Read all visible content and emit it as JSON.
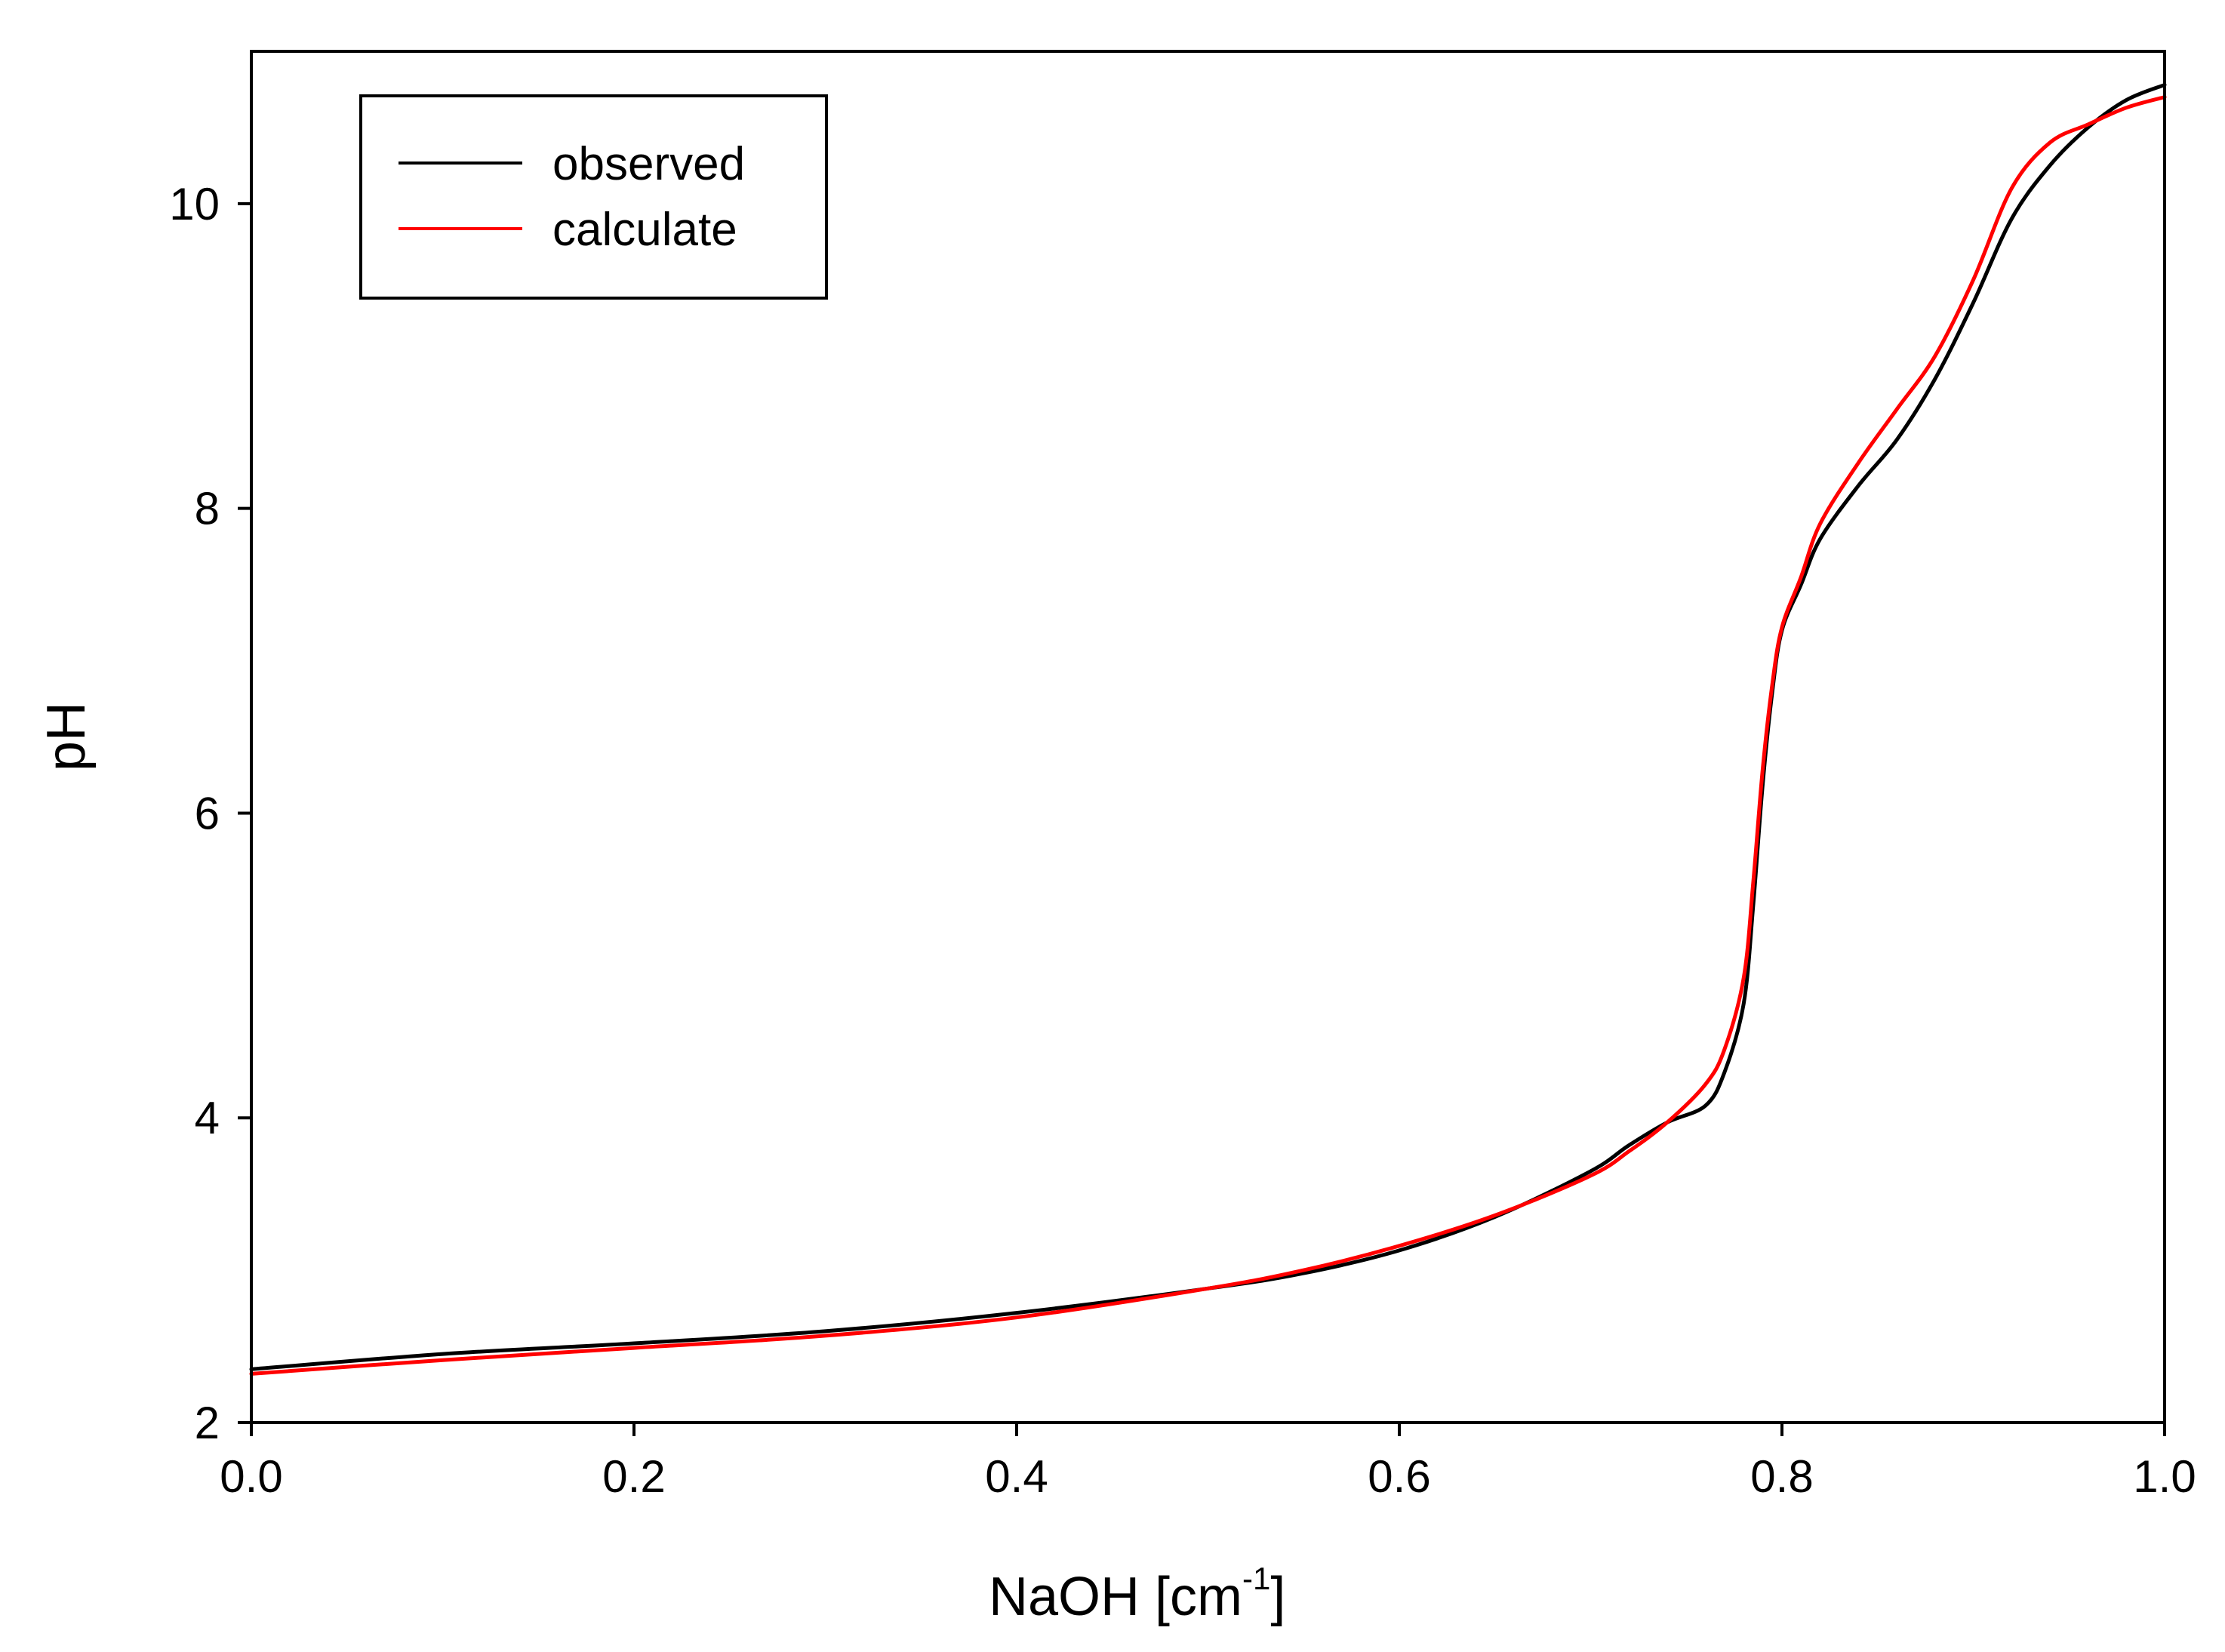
{
  "chart_data": {
    "type": "line",
    "title": "",
    "xlabel": "NaOH [cm",
    "xlabel_sup": "-1",
    "xlabel_close": "]",
    "ylabel": "pH",
    "xlim": [
      0,
      1
    ],
    "ylim": [
      2,
      11
    ],
    "x_ticks": [
      0.0,
      0.2,
      0.4,
      0.6,
      0.8,
      1.0
    ],
    "x_tick_labels": [
      "0.0",
      "0.2",
      "0.4",
      "0.6",
      "0.8",
      "1.0"
    ],
    "y_ticks": [
      2,
      4,
      6,
      8,
      10
    ],
    "y_tick_labels": [
      "2",
      "4",
      "6",
      "8",
      "10"
    ],
    "grid": false,
    "legend_position": "top-left",
    "series": [
      {
        "name": "observed",
        "color": "#000000",
        "x": [
          0.0,
          0.1,
          0.2,
          0.3,
          0.4,
          0.5,
          0.55,
          0.6,
          0.65,
          0.7,
          0.72,
          0.74,
          0.76,
          0.77,
          0.78,
          0.785,
          0.79,
          0.795,
          0.8,
          0.81,
          0.82,
          0.84,
          0.86,
          0.88,
          0.9,
          0.92,
          0.94,
          0.96,
          0.98,
          1.0
        ],
        "y": [
          2.35,
          2.45,
          2.52,
          2.6,
          2.72,
          2.88,
          2.98,
          3.13,
          3.35,
          3.65,
          3.82,
          3.97,
          4.08,
          4.3,
          4.75,
          5.4,
          6.2,
          6.8,
          7.2,
          7.5,
          7.8,
          8.15,
          8.45,
          8.85,
          9.35,
          9.9,
          10.25,
          10.5,
          10.68,
          10.78
        ]
      },
      {
        "name": "calculate",
        "color": "#ff0000",
        "x": [
          0.0,
          0.1,
          0.2,
          0.3,
          0.4,
          0.5,
          0.55,
          0.6,
          0.65,
          0.7,
          0.72,
          0.74,
          0.76,
          0.77,
          0.78,
          0.785,
          0.79,
          0.795,
          0.8,
          0.81,
          0.82,
          0.84,
          0.86,
          0.88,
          0.9,
          0.92,
          0.94,
          0.96,
          0.98,
          1.0
        ],
        "y": [
          2.32,
          2.41,
          2.49,
          2.57,
          2.69,
          2.88,
          3.0,
          3.16,
          3.36,
          3.62,
          3.78,
          3.97,
          4.22,
          4.45,
          4.92,
          5.55,
          6.3,
          6.85,
          7.22,
          7.55,
          7.9,
          8.3,
          8.65,
          9.0,
          9.5,
          10.1,
          10.4,
          10.52,
          10.63,
          10.7
        ]
      }
    ]
  }
}
